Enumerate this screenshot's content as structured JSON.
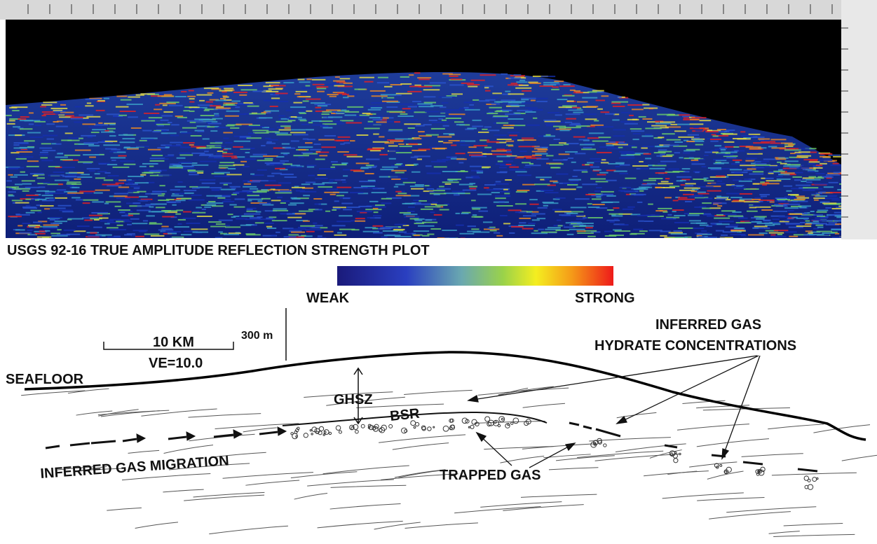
{
  "figure": {
    "title": "USGS 92-16 TRUE AMPLITUDE REFLECTION STRENGTH PLOT",
    "color_scale": {
      "low": "WEAK",
      "high": "STRONG"
    },
    "scale_bar": {
      "length": "10 KM",
      "exaggeration": "VE=10.0",
      "vertical": "300 m"
    },
    "labels": {
      "seafloor": "SEAFLOOR",
      "ghsz": "GHSZ",
      "bsr": "BSR",
      "hydrate_line1": "INFERRED GAS",
      "hydrate_line2": "HYDRATE CONCENTRATIONS",
      "migration": "INFERRED GAS MIGRATION",
      "trapped": "TRAPPED GAS"
    }
  }
}
